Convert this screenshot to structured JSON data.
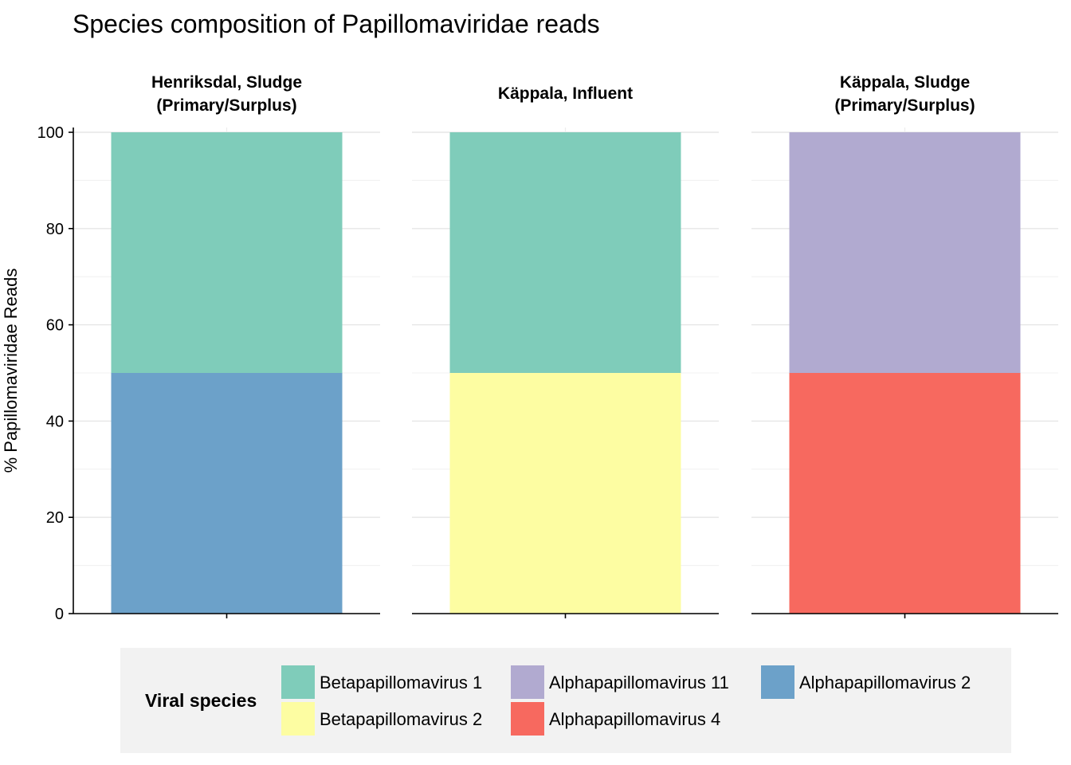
{
  "chart_data": {
    "type": "bar",
    "stacked": true,
    "title": "Species composition of Papillomaviridae reads",
    "xlabel": "",
    "ylabel": "% Papillomaviridae Reads",
    "ylim": [
      0,
      100
    ],
    "yticks": [
      "0",
      "20",
      "40",
      "60",
      "80",
      "100"
    ],
    "grid": true,
    "legend_position": "bottom",
    "facets": [
      {
        "title_lines": [
          "Henriksdal, Sludge",
          "(Primary/Surplus)"
        ],
        "segments": [
          {
            "species": "Alphapapillomavirus 2",
            "value": 50
          },
          {
            "species": "Betapapillomavirus 1",
            "value": 50
          }
        ]
      },
      {
        "title_lines": [
          "Käppala, Influent"
        ],
        "segments": [
          {
            "species": "Betapapillomavirus 2",
            "value": 50
          },
          {
            "species": "Betapapillomavirus 1",
            "value": 50
          }
        ]
      },
      {
        "title_lines": [
          "Käppala, Sludge",
          "(Primary/Surplus)"
        ],
        "segments": [
          {
            "species": "Alphapapillomavirus 4",
            "value": 50
          },
          {
            "species": "Alphapapillomavirus 11",
            "value": 50
          }
        ]
      }
    ],
    "legend": {
      "title": "Viral species",
      "items": [
        {
          "label": "Betapapillomavirus 1",
          "color": "#7fccba"
        },
        {
          "label": "Betapapillomavirus 2",
          "color": "#fdfda2"
        },
        {
          "label": "Alphapapillomavirus 11",
          "color": "#b1aad0"
        },
        {
          "label": "Alphapapillomavirus 4",
          "color": "#f7695f"
        },
        {
          "label": "Alphapapillomavirus 2",
          "color": "#6ca1c9"
        }
      ]
    }
  }
}
